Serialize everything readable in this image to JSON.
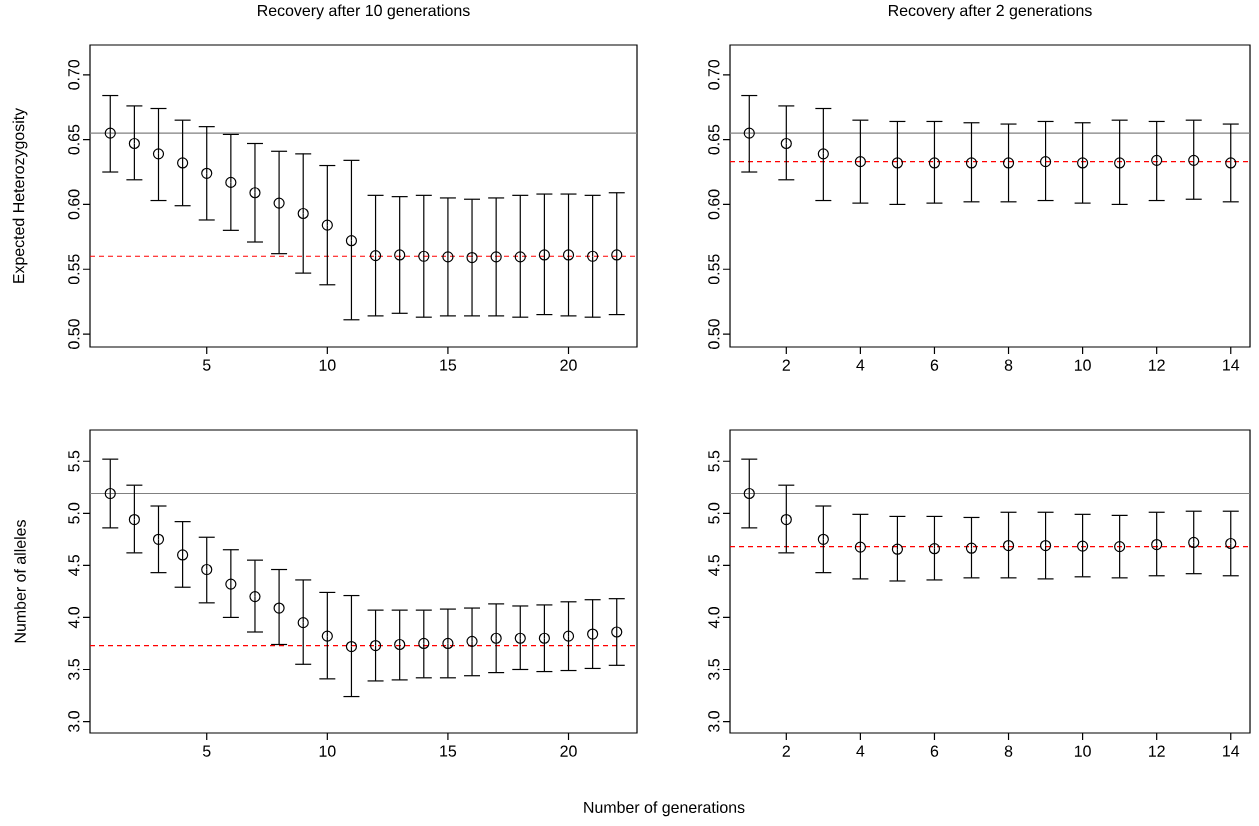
{
  "chart_data": [
    {
      "type": "scatter",
      "title": "Recovery after 10 generations",
      "ylabel": "Expected Heterozygosity",
      "marker": "circle",
      "x": [
        1,
        2,
        3,
        4,
        5,
        6,
        7,
        8,
        9,
        10,
        11,
        12,
        13,
        14,
        15,
        16,
        17,
        18,
        19,
        20,
        21,
        22
      ],
      "xlim": [
        0.16,
        22.84
      ],
      "ylim": [
        0.49,
        0.723
      ],
      "xticks": [
        5,
        10,
        15,
        20
      ],
      "yticks": [
        {
          "value": 0.5,
          "label": "0.50"
        },
        {
          "value": 0.55,
          "label": "0.55"
        },
        {
          "value": 0.6,
          "label": "0.60"
        },
        {
          "value": 0.65,
          "label": "0.65"
        },
        {
          "value": 0.7,
          "label": "0.70"
        }
      ],
      "series": [
        {
          "color": "#000000",
          "values": [
            0.655,
            0.647,
            0.639,
            0.632,
            0.624,
            0.617,
            0.609,
            0.601,
            0.593,
            0.584,
            0.572,
            0.5605,
            0.561,
            0.56,
            0.5595,
            0.559,
            0.5595,
            0.5595,
            0.561,
            0.561,
            0.56,
            0.561
          ],
          "errors": [
            [
              0.625,
              0.684
            ],
            [
              0.619,
              0.676
            ],
            [
              0.603,
              0.674
            ],
            [
              0.599,
              0.665
            ],
            [
              0.588,
              0.66
            ],
            [
              0.58,
              0.654
            ],
            [
              0.571,
              0.647
            ],
            [
              0.562,
              0.641
            ],
            [
              0.547,
              0.639
            ],
            [
              0.538,
              0.63
            ],
            [
              0.511,
              0.634
            ],
            [
              0.514,
              0.607
            ],
            [
              0.516,
              0.606
            ],
            [
              0.513,
              0.607
            ],
            [
              0.514,
              0.605
            ],
            [
              0.514,
              0.604
            ],
            [
              0.514,
              0.605
            ],
            [
              0.513,
              0.607
            ],
            [
              0.515,
              0.608
            ],
            [
              0.514,
              0.608
            ],
            [
              0.513,
              0.607
            ],
            [
              0.515,
              0.609
            ]
          ]
        }
      ],
      "ref_lines": [
        {
          "axis": "y",
          "value": 0.655,
          "color": "#808080",
          "line_style": "solid"
        },
        {
          "axis": "y",
          "value": 0.56,
          "color": "#ff0000",
          "line_style": "dashed"
        }
      ]
    },
    {
      "type": "scatter",
      "title": "Recovery after 2 generations",
      "marker": "circle",
      "x": [
        1,
        2,
        3,
        4,
        5,
        6,
        7,
        8,
        9,
        10,
        11,
        12,
        13,
        14
      ],
      "xlim": [
        0.48,
        14.52
      ],
      "ylim": [
        0.49,
        0.723
      ],
      "xticks": [
        2,
        4,
        6,
        8,
        10,
        12,
        14
      ],
      "yticks": [
        {
          "value": 0.5,
          "label": "0.50"
        },
        {
          "value": 0.55,
          "label": "0.55"
        },
        {
          "value": 0.6,
          "label": "0.60"
        },
        {
          "value": 0.65,
          "label": "0.65"
        },
        {
          "value": 0.7,
          "label": "0.70"
        }
      ],
      "series": [
        {
          "color": "#000000",
          "values": [
            0.655,
            0.647,
            0.639,
            0.633,
            0.632,
            0.632,
            0.632,
            0.632,
            0.633,
            0.632,
            0.632,
            0.634,
            0.634,
            0.632
          ],
          "errors": [
            [
              0.625,
              0.684
            ],
            [
              0.619,
              0.676
            ],
            [
              0.603,
              0.674
            ],
            [
              0.601,
              0.665
            ],
            [
              0.6,
              0.664
            ],
            [
              0.601,
              0.664
            ],
            [
              0.602,
              0.663
            ],
            [
              0.602,
              0.662
            ],
            [
              0.603,
              0.664
            ],
            [
              0.601,
              0.663
            ],
            [
              0.6,
              0.665
            ],
            [
              0.603,
              0.664
            ],
            [
              0.604,
              0.665
            ],
            [
              0.602,
              0.662
            ]
          ]
        }
      ],
      "ref_lines": [
        {
          "axis": "y",
          "value": 0.655,
          "color": "#808080",
          "line_style": "solid"
        },
        {
          "axis": "y",
          "value": 0.633,
          "color": "#ff0000",
          "line_style": "dashed"
        }
      ]
    },
    {
      "type": "scatter",
      "ylabel": "Number of alleles",
      "xlabel": "Number of generations",
      "marker": "circle",
      "x": [
        1,
        2,
        3,
        4,
        5,
        6,
        7,
        8,
        9,
        10,
        11,
        12,
        13,
        14,
        15,
        16,
        17,
        18,
        19,
        20,
        21,
        22
      ],
      "xlim": [
        0.16,
        22.84
      ],
      "ylim": [
        2.89,
        5.8
      ],
      "xticks": [
        5,
        10,
        15,
        20
      ],
      "yticks": [
        {
          "value": 3,
          "label": "3.0"
        },
        {
          "value": 3.5,
          "label": "3.5"
        },
        {
          "value": 4,
          "label": "4.0"
        },
        {
          "value": 4.5,
          "label": "4.5"
        },
        {
          "value": 5,
          "label": "5.0"
        },
        {
          "value": 5.5,
          "label": "5.5"
        }
      ],
      "series": [
        {
          "color": "#000000",
          "values": [
            5.19,
            4.94,
            4.75,
            4.6,
            4.46,
            4.32,
            4.2,
            4.09,
            3.95,
            3.82,
            3.72,
            3.73,
            3.74,
            3.75,
            3.75,
            3.77,
            3.8,
            3.8,
            3.8,
            3.82,
            3.84,
            3.86
          ],
          "errors": [
            [
              4.86,
              5.52
            ],
            [
              4.62,
              5.27
            ],
            [
              4.43,
              5.07
            ],
            [
              4.29,
              4.92
            ],
            [
              4.14,
              4.77
            ],
            [
              4.0,
              4.65
            ],
            [
              3.86,
              4.55
            ],
            [
              3.74,
              4.46
            ],
            [
              3.55,
              4.36
            ],
            [
              3.41,
              4.24
            ],
            [
              3.24,
              4.21
            ],
            [
              3.39,
              4.07
            ],
            [
              3.4,
              4.07
            ],
            [
              3.42,
              4.07
            ],
            [
              3.42,
              4.08
            ],
            [
              3.44,
              4.09
            ],
            [
              3.47,
              4.13
            ],
            [
              3.5,
              4.11
            ],
            [
              3.48,
              4.12
            ],
            [
              3.49,
              4.15
            ],
            [
              3.51,
              4.17
            ],
            [
              3.54,
              4.18
            ]
          ]
        }
      ],
      "ref_lines": [
        {
          "axis": "y",
          "value": 5.19,
          "color": "#808080",
          "line_style": "solid"
        },
        {
          "axis": "y",
          "value": 3.73,
          "color": "#ff0000",
          "line_style": "dashed"
        }
      ]
    },
    {
      "type": "scatter",
      "marker": "circle",
      "x": [
        1,
        2,
        3,
        4,
        5,
        6,
        7,
        8,
        9,
        10,
        11,
        12,
        13,
        14
      ],
      "xlim": [
        0.48,
        14.52
      ],
      "ylim": [
        2.89,
        5.8
      ],
      "xticks": [
        2,
        4,
        6,
        8,
        10,
        12,
        14
      ],
      "yticks": [
        {
          "value": 3,
          "label": "3.0"
        },
        {
          "value": 3.5,
          "label": "3.5"
        },
        {
          "value": 4,
          "label": "4.0"
        },
        {
          "value": 4.5,
          "label": "4.5"
        },
        {
          "value": 5,
          "label": "5.0"
        },
        {
          "value": 5.5,
          "label": "5.5"
        }
      ],
      "series": [
        {
          "color": "#000000",
          "values": [
            5.19,
            4.94,
            4.75,
            4.675,
            4.655,
            4.66,
            4.665,
            4.69,
            4.69,
            4.685,
            4.68,
            4.7,
            4.72,
            4.71
          ],
          "errors": [
            [
              4.86,
              5.52
            ],
            [
              4.62,
              5.27
            ],
            [
              4.43,
              5.07
            ],
            [
              4.37,
              4.99
            ],
            [
              4.35,
              4.97
            ],
            [
              4.36,
              4.97
            ],
            [
              4.38,
              4.96
            ],
            [
              4.38,
              5.01
            ],
            [
              4.37,
              5.01
            ],
            [
              4.39,
              4.99
            ],
            [
              4.38,
              4.98
            ],
            [
              4.4,
              5.01
            ],
            [
              4.42,
              5.02
            ],
            [
              4.4,
              5.02
            ]
          ]
        }
      ],
      "ref_lines": [
        {
          "axis": "y",
          "value": 5.19,
          "color": "#808080",
          "line_style": "solid"
        },
        {
          "axis": "y",
          "value": 4.68,
          "color": "#ff0000",
          "line_style": "dashed"
        }
      ]
    }
  ]
}
